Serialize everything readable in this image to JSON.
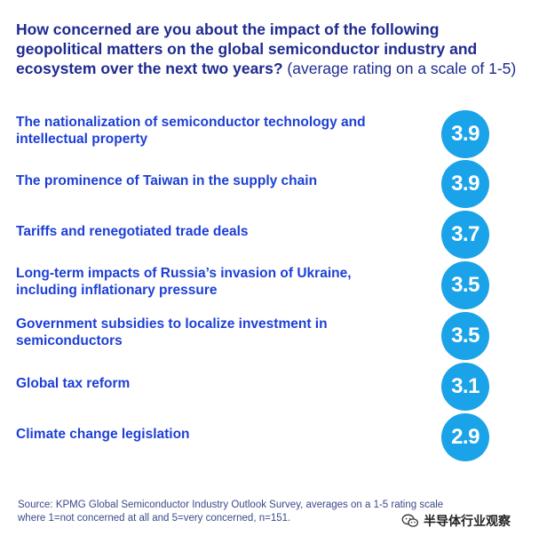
{
  "title": "How concerned are you about the impact of the following geopolitical matters on the global semiconductor industry and ecosystem over the next two years?",
  "subtitle": "(average rating on a scale of 1-5)",
  "chart_data": {
    "type": "table",
    "categories": [
      "The nationalization of semiconductor technology and intellectual property",
      "The prominence of Taiwan in the supply chain",
      "Tariffs and renegotiated trade deals",
      "Long-term impacts of Russia’s invasion of Ukraine, including inflationary pressure",
      "Government subsidies to localize investment in semiconductors",
      "Global tax reform",
      "Climate change legislation"
    ],
    "values": [
      3.9,
      3.9,
      3.7,
      3.5,
      3.5,
      3.1,
      2.9
    ],
    "labels": [
      "3.9",
      "3.9",
      "3.7",
      "3.5",
      "3.5",
      "3.1",
      "2.9"
    ]
  },
  "source": "Source: KPMG Global Semiconductor Industry Outlook Survey, averages on a 1-5 rating scale where 1=not concerned at all and 5=very concerned, n=151.",
  "watermark": {
    "icon": "wechat-icon",
    "text": "半导体行业观察"
  },
  "colors": {
    "title": "#1e2a8f",
    "label": "#1d3fd6",
    "badge": "#1aa3e8",
    "source": "#3a4a8a"
  }
}
